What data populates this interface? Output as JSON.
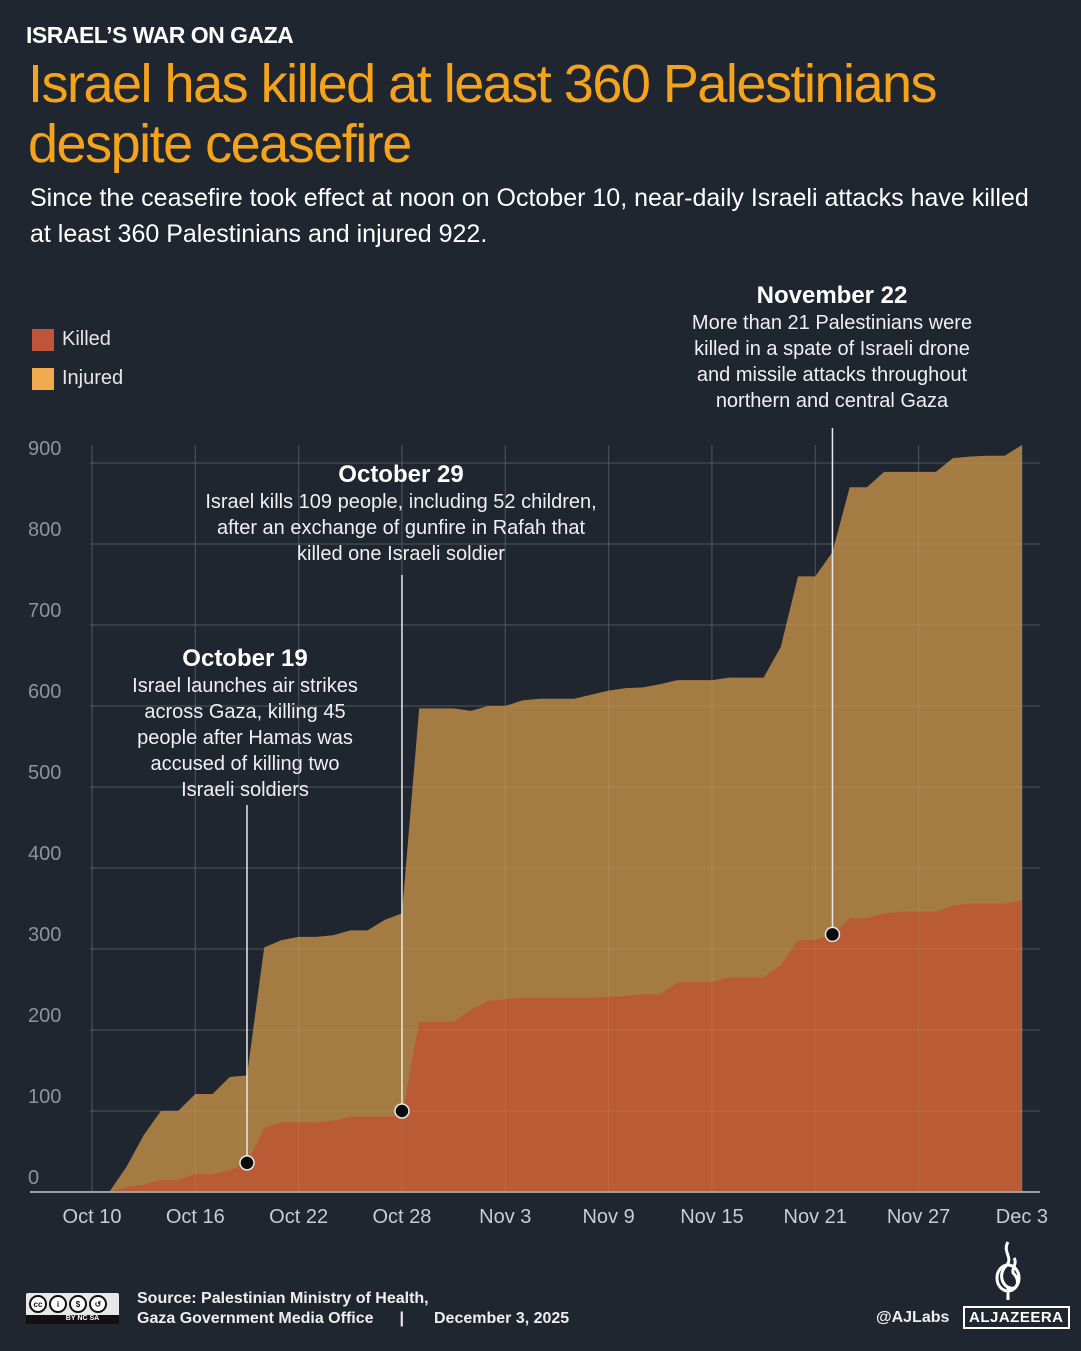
{
  "header": {
    "kicker": "ISRAEL’S WAR ON GAZA",
    "title": "Israel has killed at least 360 Palestinians despite ceasefire",
    "subtitle": "Since the ceasefire took effect at noon on October 10, near-daily Israeli attacks have killed at least 360 Palestinians and injured 922."
  },
  "colors": {
    "background": "#1f2630",
    "title": "#f5a31a",
    "killed": "#b95b35",
    "injured": "#ab7f45",
    "killed_legend": "#c0553a",
    "injured_legend": "#f0a94b"
  },
  "chart_data": {
    "type": "area",
    "overlap": true,
    "xlabel": "",
    "ylabel": "",
    "ylim": [
      0,
      920
    ],
    "yticks": [
      "0",
      "100",
      "200",
      "300",
      "400",
      "500",
      "600",
      "700",
      "800",
      "900"
    ],
    "xticks": [
      "Oct 10",
      "Oct 16",
      "Oct 22",
      "Oct 28",
      "Nov 3",
      "Nov 9",
      "Nov 15",
      "Nov 21",
      "Nov 27",
      "Dec 3"
    ],
    "grid": true,
    "legend_placement": "top-left",
    "dates": [
      "Oct 10",
      "Oct 11",
      "Oct 12",
      "Oct 13",
      "Oct 14",
      "Oct 15",
      "Oct 16",
      "Oct 17",
      "Oct 18",
      "Oct 19",
      "Oct 20",
      "Oct 21",
      "Oct 22",
      "Oct 23",
      "Oct 24",
      "Oct 25",
      "Oct 26",
      "Oct 27",
      "Oct 28",
      "Oct 29",
      "Oct 30",
      "Oct 31",
      "Nov 1",
      "Nov 2",
      "Nov 3",
      "Nov 4",
      "Nov 5",
      "Nov 6",
      "Nov 7",
      "Nov 8",
      "Nov 9",
      "Nov 10",
      "Nov 11",
      "Nov 12",
      "Nov 13",
      "Nov 14",
      "Nov 15",
      "Nov 16",
      "Nov 17",
      "Nov 18",
      "Nov 19",
      "Nov 20",
      "Nov 21",
      "Nov 22",
      "Nov 23",
      "Nov 24",
      "Nov 25",
      "Nov 26",
      "Nov 27",
      "Nov 28",
      "Nov 29",
      "Nov 30",
      "Dec 1",
      "Dec 2",
      "Dec 3"
    ],
    "series": [
      {
        "name": "Injured",
        "values": [
          0,
          0,
          31,
          70,
          100,
          100,
          121,
          121,
          142,
          144,
          302,
          311,
          315,
          315,
          317,
          323,
          323,
          336,
          344,
          597,
          597,
          597,
          594,
          600,
          600,
          607,
          609,
          609,
          609,
          614,
          619,
          622,
          623,
          627,
          632,
          632,
          632,
          635,
          635,
          635,
          673,
          760,
          760,
          790,
          870,
          870,
          889,
          889,
          889,
          889,
          906,
          908,
          909,
          909,
          922
        ]
      },
      {
        "name": "Killed",
        "values": [
          0,
          0,
          6,
          9,
          15,
          15,
          22,
          22,
          27,
          36,
          79,
          86,
          86,
          86,
          88,
          93,
          93,
          93,
          94,
          210,
          210,
          210,
          225,
          236,
          238,
          240,
          240,
          240,
          240,
          240,
          241,
          242,
          244,
          244,
          259,
          259,
          259,
          265,
          265,
          265,
          280,
          311,
          311,
          318,
          338,
          338,
          344,
          346,
          346,
          346,
          354,
          356,
          356,
          356,
          360
        ]
      }
    ],
    "annotations": [
      {
        "title": "October 19",
        "lines": [
          "Israel launches air strikes",
          "across Gaza, killing 45",
          "people after Hamas was",
          "accused of killing two",
          "Israeli soldiers"
        ],
        "anchor_date": "Oct 19",
        "anchor_value": 36
      },
      {
        "title": "October 29",
        "lines": [
          "Israel kills 109 people, including 52 children,",
          "after an exchange of gunfire in Rafah that",
          "killed one Israeli soldier"
        ],
        "anchor_date": "Oct 28",
        "anchor_value": 100
      },
      {
        "title": "November 22",
        "lines": [
          "More than 21 Palestinians were",
          "killed in a spate of Israeli drone",
          "and missile attacks throughout",
          "northern and central Gaza"
        ],
        "anchor_date": "Nov 22",
        "anchor_value": 318
      }
    ]
  },
  "legend": {
    "killed": "Killed",
    "injured": "Injured"
  },
  "footer": {
    "source_line1": "Source:  Palestinian Ministry of Health,",
    "source_line2": "Gaza Government Media Office",
    "separator": "|",
    "date": "December 3, 2025",
    "handle": "@AJLabs",
    "brand": "ALJAZEERA",
    "license": "BY NC SA"
  }
}
